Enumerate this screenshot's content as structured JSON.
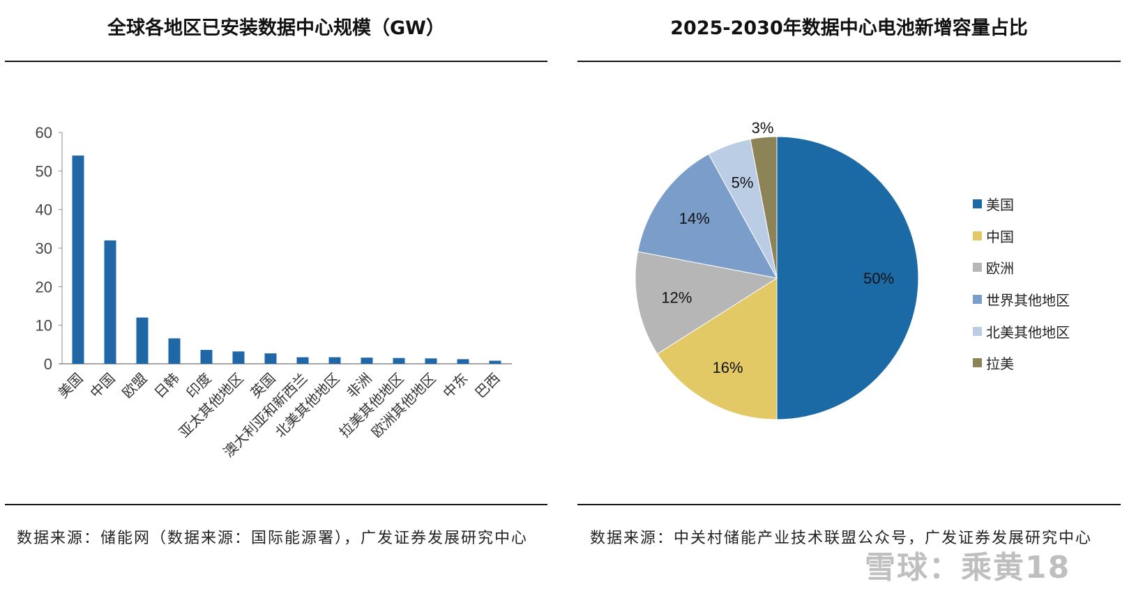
{
  "left": {
    "title": "全球各地区已安装数据中心规模（GW）",
    "source": "数据来源：储能网（数据来源：国际能源署），广发证券发展研究中心"
  },
  "right": {
    "title": "2025-2030年数据中心电池新增容量占比",
    "source": "数据来源：中关村储能产业技术联盟公众号，广发证券发展研究中心"
  },
  "watermark": "雪球：乘黄18",
  "chart_data": [
    {
      "type": "bar",
      "title": "全球各地区已安装数据中心规模（GW）",
      "categories": [
        "美国",
        "中国",
        "欧盟",
        "日韩",
        "印度",
        "亚太其他地区",
        "英国",
        "澳大利亚和新西兰",
        "北美其他地区",
        "非洲",
        "拉美其他地区",
        "欧洲其他地区",
        "中东",
        "巴西"
      ],
      "values": [
        54,
        32,
        12,
        6.6,
        3.6,
        3.2,
        2.7,
        1.7,
        1.7,
        1.6,
        1.5,
        1.4,
        1.2,
        0.8
      ],
      "ylim": [
        0,
        60
      ],
      "yticks": [
        "0",
        "10",
        "20",
        "30",
        "40",
        "50",
        "60"
      ],
      "color": "#1f67a6",
      "grid": false
    },
    {
      "type": "pie",
      "title": "2025-2030年数据中心电池新增容量占比",
      "legend_position": "right",
      "slices": [
        {
          "name": "美国",
          "value": 50,
          "label": "50%",
          "color": "#1b6aa5"
        },
        {
          "name": "中国",
          "value": 16,
          "label": "16%",
          "color": "#e3c866"
        },
        {
          "name": "欧洲",
          "value": 12,
          "label": "12%",
          "color": "#b6b6b6"
        },
        {
          "name": "世界其他地区",
          "value": 14,
          "label": "14%",
          "color": "#7b9dca"
        },
        {
          "name": "北美其他地区",
          "value": 5,
          "label": "5%",
          "color": "#bacde5"
        },
        {
          "name": "拉美",
          "value": 3,
          "label": "3%",
          "color": "#8c8457"
        }
      ]
    }
  ]
}
